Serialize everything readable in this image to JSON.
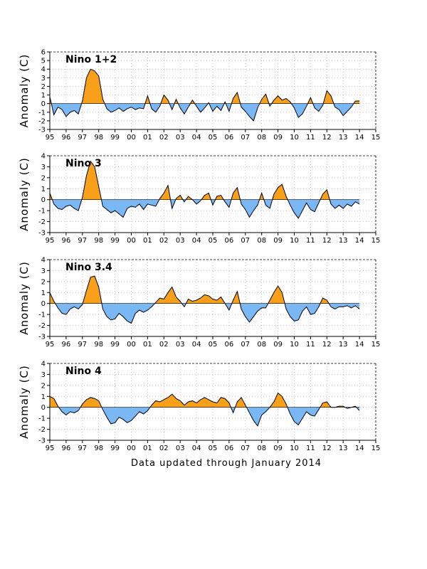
{
  "footer": "Data updated through January 2014",
  "colors": {
    "positive": "#f9a01b",
    "negative": "#7ab7f5",
    "line": "#000000",
    "grid": "#b0b0b0"
  },
  "chart_data": [
    {
      "type": "area",
      "title": "Nino 1+2",
      "ylabel": "Anomaly (C)",
      "ylim": [
        -3,
        6
      ],
      "yticks": [
        "-3",
        "-2",
        "-1",
        "0",
        "1",
        "2",
        "3",
        "4",
        "5",
        "6"
      ],
      "xlim": [
        1995,
        2015
      ],
      "xticks": [
        "95",
        "96",
        "97",
        "98",
        "99",
        "00",
        "01",
        "02",
        "03",
        "04",
        "05",
        "06",
        "07",
        "08",
        "09",
        "10",
        "11",
        "12",
        "13",
        "14",
        "15"
      ],
      "grid": true,
      "x": [
        1995.0,
        1995.25,
        1995.5,
        1995.75,
        1996.0,
        1996.25,
        1996.5,
        1996.75,
        1997.0,
        1997.25,
        1997.5,
        1997.75,
        1998.0,
        1998.25,
        1998.5,
        1998.75,
        1999.0,
        1999.25,
        1999.5,
        1999.75,
        2000.0,
        2000.25,
        2000.5,
        2000.75,
        2001.0,
        2001.25,
        2001.5,
        2001.75,
        2002.0,
        2002.25,
        2002.5,
        2002.75,
        2003.0,
        2003.25,
        2003.5,
        2003.75,
        2004.0,
        2004.25,
        2004.5,
        2004.75,
        2005.0,
        2005.25,
        2005.5,
        2005.75,
        2006.0,
        2006.25,
        2006.5,
        2006.75,
        2007.0,
        2007.25,
        2007.5,
        2007.75,
        2008.0,
        2008.25,
        2008.5,
        2008.75,
        2009.0,
        2009.25,
        2009.5,
        2009.75,
        2010.0,
        2010.25,
        2010.5,
        2010.75,
        2011.0,
        2011.25,
        2011.5,
        2011.75,
        2012.0,
        2012.25,
        2012.5,
        2012.75,
        2013.0,
        2013.25,
        2013.5,
        2013.75,
        2014.0
      ],
      "values": [
        0.8,
        -1.3,
        -0.4,
        -0.7,
        -1.5,
        -1.0,
        -0.8,
        -1.2,
        0.3,
        3.0,
        4.0,
        3.8,
        3.2,
        0.5,
        -0.6,
        -1.0,
        -0.8,
        -0.5,
        -0.9,
        -0.6,
        -0.4,
        -0.7,
        -0.5,
        -0.6,
        0.9,
        -0.6,
        -1.0,
        -0.3,
        1.0,
        0.4,
        -0.7,
        0.5,
        -0.5,
        -1.2,
        -0.4,
        0.4,
        -0.3,
        -1.0,
        -0.5,
        0.1,
        -0.9,
        -0.3,
        -0.8,
        0.2,
        -0.9,
        0.6,
        1.3,
        -0.4,
        -0.9,
        -1.5,
        -2.0,
        -0.5,
        0.5,
        1.1,
        -0.3,
        0.4,
        0.9,
        0.4,
        0.6,
        0.2,
        -0.5,
        -1.6,
        -1.2,
        -0.3,
        0.7,
        -0.5,
        -0.9,
        -0.2,
        1.5,
        0.9,
        -0.4,
        -0.7,
        -1.4,
        -0.9,
        -0.4,
        0.3,
        0.3
      ]
    },
    {
      "type": "area",
      "title": "Nino 3",
      "ylabel": "Anomaly (C)",
      "ylim": [
        -3,
        4
      ],
      "yticks": [
        "-3",
        "-2",
        "-1",
        "0",
        "1",
        "2",
        "3",
        "4"
      ],
      "xlim": [
        1995,
        2015
      ],
      "xticks": [
        "95",
        "96",
        "97",
        "98",
        "99",
        "00",
        "01",
        "02",
        "03",
        "04",
        "05",
        "06",
        "07",
        "08",
        "09",
        "10",
        "11",
        "12",
        "13",
        "14",
        "15"
      ],
      "grid": true,
      "x": [
        1995.0,
        1995.25,
        1995.5,
        1995.75,
        1996.0,
        1996.25,
        1996.5,
        1996.75,
        1997.0,
        1997.25,
        1997.5,
        1997.75,
        1998.0,
        1998.25,
        1998.5,
        1998.75,
        1999.0,
        1999.25,
        1999.5,
        1999.75,
        2000.0,
        2000.25,
        2000.5,
        2000.75,
        2001.0,
        2001.25,
        2001.5,
        2001.75,
        2002.0,
        2002.25,
        2002.5,
        2002.75,
        2003.0,
        2003.25,
        2003.5,
        2003.75,
        2004.0,
        2004.25,
        2004.5,
        2004.75,
        2005.0,
        2005.25,
        2005.5,
        2005.75,
        2006.0,
        2006.25,
        2006.5,
        2006.75,
        2007.0,
        2007.25,
        2007.5,
        2007.75,
        2008.0,
        2008.25,
        2008.5,
        2008.75,
        2009.0,
        2009.25,
        2009.5,
        2009.75,
        2010.0,
        2010.25,
        2010.5,
        2010.75,
        2011.0,
        2011.25,
        2011.5,
        2011.75,
        2012.0,
        2012.25,
        2012.5,
        2012.75,
        2013.0,
        2013.25,
        2013.5,
        2013.75,
        2014.0
      ],
      "values": [
        0.6,
        -0.4,
        -0.8,
        -0.9,
        -0.6,
        -0.5,
        -0.8,
        -1.0,
        0.2,
        2.2,
        3.5,
        3.0,
        1.2,
        -0.6,
        -0.9,
        -1.2,
        -1.0,
        -1.3,
        -1.6,
        -0.8,
        -0.6,
        -0.7,
        -0.4,
        -0.9,
        -0.4,
        -0.5,
        -0.6,
        0.1,
        0.6,
        1.3,
        -0.8,
        0.1,
        0.4,
        -0.2,
        0.3,
        0.0,
        -0.4,
        -0.1,
        0.4,
        0.6,
        -0.5,
        0.3,
        0.4,
        -0.2,
        -0.7,
        0.6,
        1.1,
        -0.4,
        -0.9,
        -1.6,
        -1.0,
        -0.5,
        0.6,
        -0.5,
        -0.8,
        0.5,
        1.1,
        1.4,
        0.3,
        -0.5,
        -1.2,
        -1.7,
        -1.0,
        -0.3,
        -0.9,
        -1.1,
        -0.3,
        0.5,
        0.9,
        -0.4,
        -0.8,
        -0.5,
        -0.8,
        -0.4,
        -0.6,
        -0.2,
        -0.4
      ]
    },
    {
      "type": "area",
      "title": "Nino 3.4",
      "ylabel": "Anomaly (C)",
      "ylim": [
        -3,
        4
      ],
      "yticks": [
        "-3",
        "-2",
        "-1",
        "0",
        "1",
        "2",
        "3",
        "4"
      ],
      "xlim": [
        1995,
        2015
      ],
      "xticks": [
        "95",
        "96",
        "97",
        "98",
        "99",
        "00",
        "01",
        "02",
        "03",
        "04",
        "05",
        "06",
        "07",
        "08",
        "09",
        "10",
        "11",
        "12",
        "13",
        "14",
        "15"
      ],
      "grid": true,
      "x": [
        1995.0,
        1995.25,
        1995.5,
        1995.75,
        1996.0,
        1996.25,
        1996.5,
        1996.75,
        1997.0,
        1997.25,
        1997.5,
        1997.75,
        1998.0,
        1998.25,
        1998.5,
        1998.75,
        1999.0,
        1999.25,
        1999.5,
        1999.75,
        2000.0,
        2000.25,
        2000.5,
        2000.75,
        2001.0,
        2001.25,
        2001.5,
        2001.75,
        2002.0,
        2002.25,
        2002.5,
        2002.75,
        2003.0,
        2003.25,
        2003.5,
        2003.75,
        2004.0,
        2004.25,
        2004.5,
        2004.75,
        2005.0,
        2005.25,
        2005.5,
        2005.75,
        2006.0,
        2006.25,
        2006.5,
        2006.75,
        2007.0,
        2007.25,
        2007.5,
        2007.75,
        2008.0,
        2008.25,
        2008.5,
        2008.75,
        2009.0,
        2009.25,
        2009.5,
        2009.75,
        2010.0,
        2010.25,
        2010.5,
        2010.75,
        2011.0,
        2011.25,
        2011.5,
        2011.75,
        2012.0,
        2012.25,
        2012.5,
        2012.75,
        2013.0,
        2013.25,
        2013.5,
        2013.75,
        2014.0
      ],
      "values": [
        1.0,
        0.2,
        -0.4,
        -0.9,
        -1.0,
        -0.5,
        -0.3,
        -0.5,
        -0.1,
        1.2,
        2.4,
        2.5,
        1.5,
        -0.5,
        -1.2,
        -1.5,
        -1.4,
        -0.9,
        -1.2,
        -1.6,
        -1.8,
        -0.9,
        -0.6,
        -0.8,
        -0.6,
        -0.3,
        0.1,
        0.5,
        0.4,
        1.0,
        1.5,
        0.6,
        0.2,
        -0.3,
        0.4,
        0.2,
        0.3,
        0.5,
        0.8,
        0.7,
        0.4,
        0.3,
        0.6,
        0.0,
        -0.6,
        0.3,
        1.1,
        -0.5,
        -1.2,
        -1.7,
        -1.2,
        -0.7,
        -0.4,
        -0.4,
        0.3,
        1.0,
        1.6,
        1.0,
        -0.5,
        -1.2,
        -1.6,
        -1.5,
        -0.7,
        -0.3,
        -1.0,
        -0.9,
        -0.3,
        0.5,
        0.3,
        -0.3,
        -0.5,
        -0.3,
        -0.3,
        -0.2,
        -0.4,
        -0.2,
        -0.5
      ]
    },
    {
      "type": "area",
      "title": "Nino 4",
      "ylabel": "Anomaly (C)",
      "ylim": [
        -3,
        4
      ],
      "yticks": [
        "-3",
        "-2",
        "-1",
        "0",
        "1",
        "2",
        "3",
        "4"
      ],
      "xlim": [
        1995,
        2015
      ],
      "xticks": [
        "95",
        "96",
        "97",
        "98",
        "99",
        "00",
        "01",
        "02",
        "03",
        "04",
        "05",
        "06",
        "07",
        "08",
        "09",
        "10",
        "11",
        "12",
        "13",
        "14",
        "15"
      ],
      "grid": true,
      "x": [
        1995.0,
        1995.25,
        1995.5,
        1995.75,
        1996.0,
        1996.25,
        1996.5,
        1996.75,
        1997.0,
        1997.25,
        1997.5,
        1997.75,
        1998.0,
        1998.25,
        1998.5,
        1998.75,
        1999.0,
        1999.25,
        1999.5,
        1999.75,
        2000.0,
        2000.25,
        2000.5,
        2000.75,
        2001.0,
        2001.25,
        2001.5,
        2001.75,
        2002.0,
        2002.25,
        2002.5,
        2002.75,
        2003.0,
        2003.25,
        2003.5,
        2003.75,
        2004.0,
        2004.25,
        2004.5,
        2004.75,
        2005.0,
        2005.25,
        2005.5,
        2005.75,
        2006.0,
        2006.25,
        2006.5,
        2006.75,
        2007.0,
        2007.25,
        2007.5,
        2007.75,
        2008.0,
        2008.25,
        2008.5,
        2008.75,
        2009.0,
        2009.25,
        2009.5,
        2009.75,
        2010.0,
        2010.25,
        2010.5,
        2010.75,
        2011.0,
        2011.25,
        2011.5,
        2011.75,
        2012.0,
        2012.25,
        2012.5,
        2012.75,
        2013.0,
        2013.25,
        2013.5,
        2013.75,
        2014.0
      ],
      "values": [
        1.0,
        0.8,
        0.1,
        -0.4,
        -0.7,
        -0.4,
        -0.5,
        -0.3,
        0.3,
        0.7,
        0.9,
        0.8,
        0.6,
        -0.2,
        -0.9,
        -1.5,
        -1.4,
        -0.9,
        -1.1,
        -1.4,
        -1.2,
        -0.8,
        -0.4,
        -0.6,
        -0.3,
        0.2,
        0.6,
        0.5,
        0.7,
        0.9,
        1.2,
        0.8,
        0.6,
        0.2,
        0.5,
        0.6,
        0.4,
        0.7,
        0.9,
        0.7,
        0.5,
        0.4,
        0.9,
        0.8,
        0.4,
        -0.5,
        0.5,
        0.9,
        0.2,
        -0.5,
        -1.2,
        -1.7,
        -0.7,
        -0.4,
        0.0,
        0.5,
        1.3,
        1.0,
        0.3,
        -0.6,
        -1.3,
        -1.6,
        -1.0,
        -0.4,
        -0.7,
        -0.8,
        -0.2,
        0.4,
        0.5,
        0.0,
        0.0,
        0.1,
        0.1,
        -0.1,
        0.0,
        0.1,
        -0.3
      ]
    }
  ]
}
